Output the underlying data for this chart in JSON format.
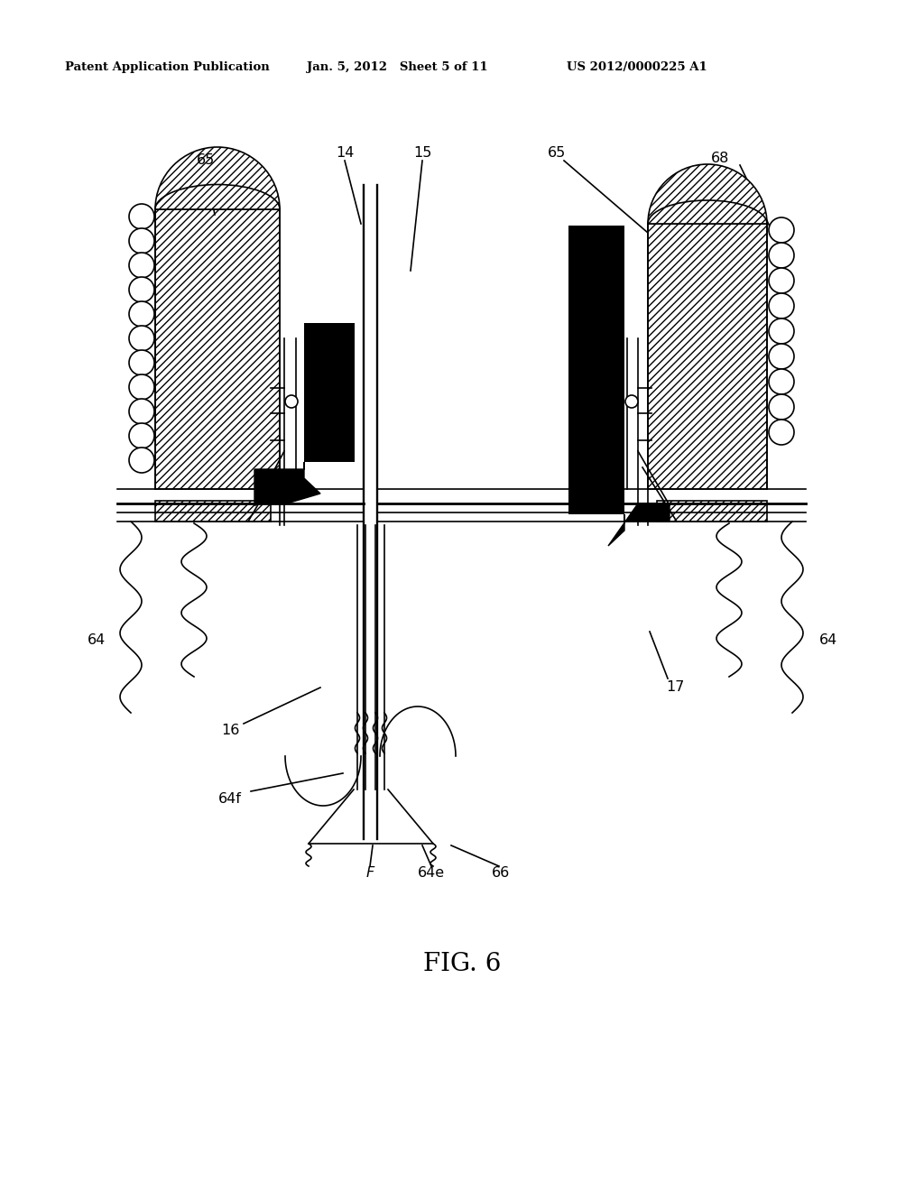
{
  "bg_color": "#ffffff",
  "line_color": "#000000",
  "header_left": "Patent Application Publication",
  "header_mid": "Jan. 5, 2012   Sheet 5 of 11",
  "header_right": "US 2012/0000225 A1",
  "title": "FIG. 6",
  "labels": {
    "65_left": "65",
    "14": "14",
    "15": "15",
    "65_right": "65",
    "68": "68",
    "64_left": "64",
    "16": "16",
    "64f": "64f",
    "F": "F",
    "64e": "64e",
    "66": "66",
    "64_right": "64",
    "17": "17"
  }
}
